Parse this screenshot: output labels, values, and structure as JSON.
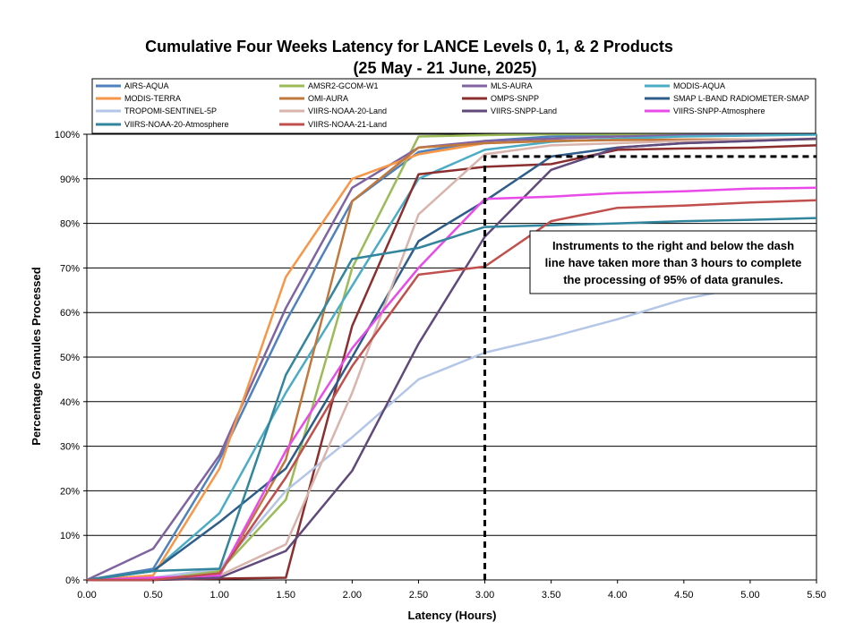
{
  "chart_data": {
    "type": "line",
    "title": "Cumulative Four Weeks Latency  for LANCE Levels 0, 1, & 2 Products",
    "subtitle": "(25  May   -  21  June,  2025)",
    "xlabel": "Latency (Hours)",
    "ylabel": "Percentage Granules Processed",
    "xlim": [
      0,
      5.5
    ],
    "ylim": [
      0,
      100
    ],
    "x_ticks": [
      "0.00",
      "0.50",
      "1.00",
      "1.50",
      "2.00",
      "2.50",
      "3.00",
      "3.50",
      "4.00",
      "4.50",
      "5.00",
      "5.50"
    ],
    "y_ticks": [
      "0%",
      "10%",
      "20%",
      "30%",
      "40%",
      "50%",
      "60%",
      "70%",
      "80%",
      "90%",
      "100%"
    ],
    "grid": "horizontal",
    "legend_position": "top",
    "x": [
      0,
      0.5,
      1.0,
      1.5,
      2.0,
      2.5,
      3.0,
      3.5,
      4.0,
      4.5,
      5.0,
      5.5
    ],
    "series": [
      {
        "name": "AIRS-AQUA",
        "color": "#4f81bd",
        "values": [
          0,
          2.5,
          27,
          58,
          85,
          96,
          98.5,
          99.5,
          99.8,
          99.9,
          100,
          100
        ]
      },
      {
        "name": "AMSR2-GCOM-W1",
        "color": "#9bbb59",
        "values": [
          0,
          0.5,
          2,
          18,
          70,
          99.5,
          99.8,
          100,
          100,
          100,
          100,
          100
        ]
      },
      {
        "name": "MLS-AURA",
        "color": "#8064a2",
        "values": [
          0,
          7,
          28,
          61,
          88,
          97,
          98.5,
          99,
          99.5,
          99.8,
          99.9,
          100
        ]
      },
      {
        "name": "MODIS-AQUA",
        "color": "#4bacc6",
        "values": [
          0,
          2,
          15,
          42,
          66,
          90,
          96.5,
          98.3,
          99,
          99.5,
          99.7,
          99.9
        ]
      },
      {
        "name": "MODIS-TERRA",
        "color": "#f79646",
        "values": [
          0,
          1,
          25,
          68,
          90,
          95.5,
          98,
          98.5,
          98.7,
          98.8,
          98.8,
          99
        ]
      },
      {
        "name": "OMI-AURA",
        "color": "#c0783c",
        "values": [
          0,
          0,
          1,
          27,
          85,
          97,
          98,
          98.5,
          98.7,
          98.8,
          98.8,
          98.9
        ]
      },
      {
        "name": "OMPS-SNPP",
        "color": "#8b2e2e",
        "values": [
          0,
          0,
          0.3,
          0.5,
          57,
          91,
          92.7,
          93.3,
          96.5,
          96.8,
          97,
          97.5
        ]
      },
      {
        "name": "SMAP L-BAND RADIOMETER-SMAP",
        "color": "#2f5d8a",
        "values": [
          0,
          2,
          13,
          25,
          50,
          76,
          85,
          95,
          97,
          98,
          98.5,
          99
        ]
      },
      {
        "name": "TROPOMI-SENTINEL-5P",
        "color": "#b4c6e7",
        "values": [
          0,
          0.5,
          2.5,
          20,
          32,
          45,
          51,
          54.5,
          58.5,
          63,
          66,
          70
        ]
      },
      {
        "name": "VIIRS-NOAA-20-Land",
        "color": "#d8b4ac",
        "values": [
          0,
          0.5,
          1,
          8,
          42,
          82,
          95.5,
          97.5,
          98,
          98.5,
          98.8,
          99
        ]
      },
      {
        "name": "VIIRS-SNPP-Land",
        "color": "#604a7b",
        "values": [
          0,
          0,
          0.5,
          6.5,
          24.5,
          53,
          77,
          92,
          97,
          98,
          98.5,
          99
        ]
      },
      {
        "name": "VIIRS-SNPP-Atmosphere",
        "color": "#e84be8",
        "values": [
          0,
          0.5,
          1,
          29,
          52,
          70,
          85.5,
          86,
          86.8,
          87.2,
          87.8,
          88
        ]
      },
      {
        "name": "VIIRS-NOAA-20-Atmosphere",
        "color": "#31859c",
        "values": [
          0,
          2,
          2.5,
          46,
          72,
          74.5,
          79.2,
          79.6,
          80,
          80.5,
          80.8,
          81.2
        ]
      },
      {
        "name": "VIIRS-NOAA-21-Land",
        "color": "#c0504d",
        "values": [
          0,
          0,
          1.5,
          23,
          48,
          68.5,
          70.3,
          80.5,
          83.5,
          84,
          84.7,
          85.2
        ]
      }
    ],
    "reference_line": {
      "x": 3.0,
      "y": 95
    },
    "annotation": {
      "lines": [
        "Instruments to the right and below the dash",
        "line have taken more than 3 hours to complete",
        "the processing of 95% of data granules."
      ]
    }
  }
}
